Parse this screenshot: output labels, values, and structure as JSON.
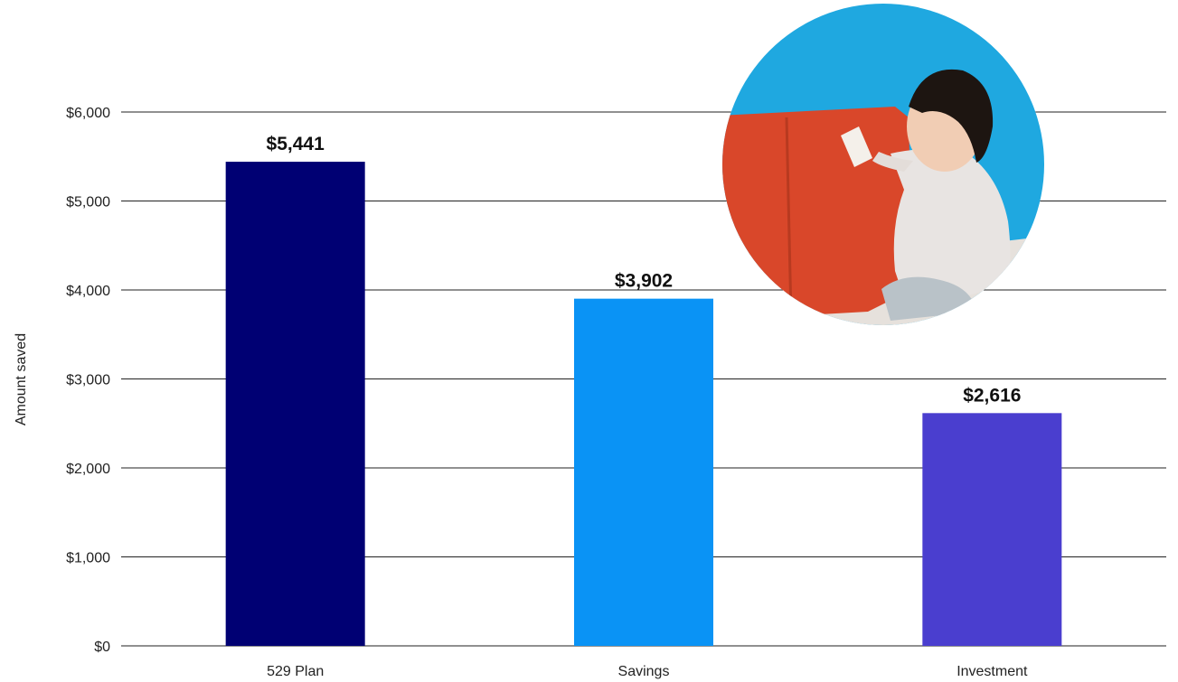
{
  "chart_data": {
    "type": "bar",
    "categories": [
      "529 Plan",
      "Savings",
      "Investment"
    ],
    "values": [
      5441,
      3902,
      2616
    ],
    "data_labels": [
      "$5,441",
      "$3,902",
      "$2,616"
    ],
    "bar_colors": [
      "#000073",
      "#0a93f5",
      "#4a3ecf"
    ],
    "title": "",
    "xlabel": "",
    "ylabel": "Amount saved",
    "ylim": [
      0,
      6000
    ],
    "y_ticks": [
      0,
      1000,
      2000,
      3000,
      4000,
      5000,
      6000
    ],
    "y_tick_labels": [
      "$0",
      "$1,000",
      "$2,000",
      "$3,000",
      "$4,000",
      "$5,000",
      "$6,000"
    ],
    "grid": true,
    "legend": "none"
  },
  "photo": {
    "icon": "baby-with-gift-photo",
    "colors": {
      "background": "#1fa8e0",
      "gift": "#d9472a",
      "clothing": "#e8e4e2",
      "floor": "#e6e1dc"
    }
  }
}
